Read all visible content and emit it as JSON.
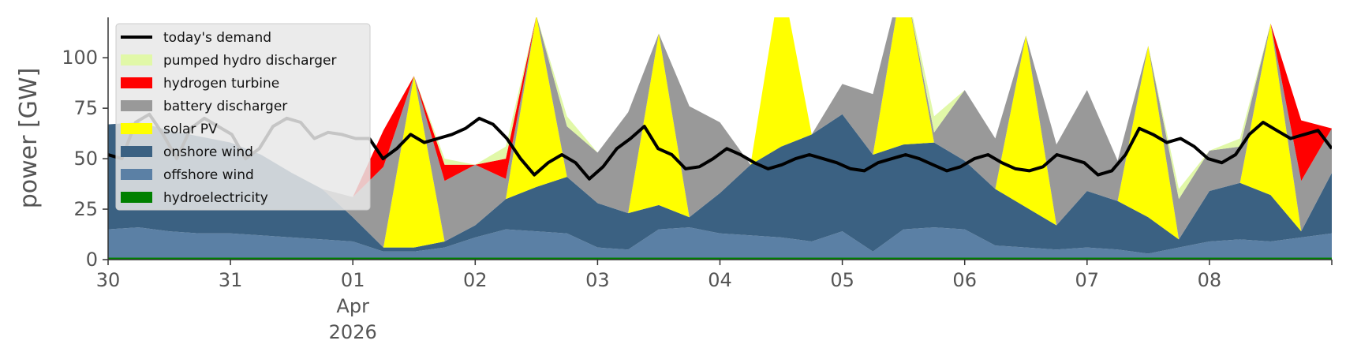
{
  "chart_data": {
    "type": "area",
    "title": "",
    "ylabel": "power [GW]",
    "xlabel": "",
    "xlim": [
      0,
      10
    ],
    "ylim": [
      0,
      120
    ],
    "grid": false,
    "legend_position": "top-left",
    "x_ticks": [
      {
        "x": 0,
        "label": "30"
      },
      {
        "x": 1,
        "label": "31"
      },
      {
        "x": 2,
        "label": "01",
        "sub": [
          "Apr",
          "2026"
        ]
      },
      {
        "x": 3,
        "label": "02"
      },
      {
        "x": 4,
        "label": "03"
      },
      {
        "x": 5,
        "label": "04"
      },
      {
        "x": 6,
        "label": "05"
      },
      {
        "x": 7,
        "label": "06"
      },
      {
        "x": 8,
        "label": "07"
      },
      {
        "x": 9,
        "label": "08"
      }
    ],
    "y_ticks": [
      0,
      25,
      50,
      75,
      100
    ],
    "x": [
      0,
      0.25,
      0.5,
      0.75,
      1,
      1.25,
      1.5,
      1.75,
      2,
      2.25,
      2.5,
      2.75,
      3,
      3.25,
      3.5,
      3.75,
      4,
      4.25,
      4.5,
      4.75,
      5,
      5.25,
      5.5,
      5.75,
      6,
      6.25,
      6.5,
      6.75,
      7,
      7.25,
      7.5,
      7.75,
      8,
      8.25,
      8.5,
      8.75,
      9,
      9.25,
      9.5,
      9.75,
      10
    ],
    "stack_series": [
      {
        "name": "hydroelectricity",
        "color": "#008000",
        "values": [
          1,
          1,
          1,
          1,
          1,
          1,
          1,
          1,
          1,
          1,
          1,
          1,
          1,
          1,
          1,
          1,
          1,
          1,
          1,
          1,
          1,
          1,
          1,
          1,
          1,
          1,
          1,
          1,
          1,
          1,
          1,
          1,
          1,
          1,
          1,
          1,
          1,
          1,
          1,
          1,
          1
        ]
      },
      {
        "name": "offshore wind",
        "color": "#5b80a5",
        "values": [
          14,
          15,
          13,
          12,
          12,
          11,
          10,
          9,
          8,
          3,
          3,
          5,
          10,
          14,
          13,
          12,
          5,
          4,
          14,
          15,
          12,
          11,
          10,
          8,
          13,
          3,
          14,
          15,
          14,
          6,
          5,
          4,
          5,
          4,
          2,
          5,
          8,
          9,
          8,
          10,
          12
        ]
      },
      {
        "name": "onshore wind",
        "color": "#3b6182",
        "values": [
          52,
          52,
          50,
          48,
          45,
          40,
          32,
          25,
          12,
          2,
          2,
          3,
          6,
          15,
          22,
          28,
          22,
          18,
          12,
          5,
          20,
          35,
          45,
          53,
          58,
          48,
          42,
          42,
          34,
          28,
          20,
          12,
          28,
          24,
          18,
          4,
          25,
          28,
          23,
          3,
          30
        ]
      },
      {
        "name": "solar PV",
        "color": "#ffff00",
        "values": [
          0,
          0,
          0,
          0,
          0,
          0,
          0,
          0,
          0,
          0,
          85,
          0,
          0,
          0,
          85,
          0,
          0,
          0,
          85,
          0,
          0,
          0,
          85,
          0,
          0,
          0,
          85,
          0,
          0,
          0,
          85,
          0,
          0,
          0,
          85,
          0,
          0,
          0,
          85,
          0,
          0
        ]
      },
      {
        "name": "battery discharger",
        "color": "#999999",
        "values": [
          0,
          0,
          0,
          0,
          0,
          0,
          0,
          0,
          10,
          40,
          0,
          30,
          30,
          10,
          0,
          25,
          25,
          50,
          0,
          55,
          35,
          0,
          0,
          0,
          15,
          30,
          0,
          5,
          35,
          25,
          0,
          40,
          50,
          20,
          0,
          20,
          20,
          18,
          0,
          25,
          22
        ]
      },
      {
        "name": "hydrogen turbine",
        "color": "#ff0000",
        "values": [
          0,
          0,
          0,
          0,
          0,
          0,
          0,
          0,
          0,
          18,
          0,
          8,
          0,
          10,
          0,
          0,
          0,
          0,
          0,
          0,
          0,
          0,
          0,
          0,
          0,
          0,
          0,
          0,
          0,
          0,
          0,
          0,
          0,
          0,
          0,
          0,
          0,
          0,
          0,
          30,
          0
        ]
      },
      {
        "name": "pumped hydro discharger",
        "color": "#e1f8a8",
        "values": [
          0,
          0,
          0,
          0,
          0,
          0,
          0,
          0,
          0,
          0,
          0,
          3,
          0,
          6,
          0,
          5,
          0,
          0,
          0,
          0,
          0,
          0,
          0,
          0,
          0,
          0,
          0,
          8,
          0,
          0,
          0,
          0,
          0,
          0,
          0,
          5,
          0,
          4,
          0,
          0,
          0
        ]
      }
    ],
    "demand": {
      "name": "today's demand",
      "color": "#000000",
      "values": [
        52,
        50,
        68,
        72,
        62,
        50,
        65,
        70,
        66,
        62,
        50,
        55,
        66,
        70,
        68,
        60,
        63,
        62,
        60,
        60,
        50,
        55,
        62,
        58,
        60,
        62,
        65,
        70,
        67,
        60,
        50,
        42,
        48,
        52,
        48,
        40,
        46,
        55,
        60,
        66,
        55,
        52,
        45,
        46,
        50,
        55,
        52,
        48,
        45,
        47,
        50,
        52,
        50,
        48,
        45,
        44,
        48,
        50,
        52,
        50,
        47,
        44,
        46,
        50,
        52,
        48,
        45,
        44,
        46,
        52,
        50,
        48,
        42,
        44,
        52,
        65,
        62,
        58,
        60,
        56,
        50,
        48,
        52,
        62,
        68,
        64,
        60,
        62,
        64,
        55
      ]
    },
    "demand_x_start": 0,
    "demand_x_end": 10,
    "legend": [
      {
        "label": "today's demand",
        "color": "#000000",
        "kind": "line"
      },
      {
        "label": "pumped hydro discharger",
        "color": "#e1f8a8",
        "kind": "patch"
      },
      {
        "label": "hydrogen turbine",
        "color": "#ff0000",
        "kind": "patch"
      },
      {
        "label": "battery discharger",
        "color": "#999999",
        "kind": "patch"
      },
      {
        "label": "solar PV",
        "color": "#ffff00",
        "kind": "patch"
      },
      {
        "label": "onshore wind",
        "color": "#3b6182",
        "kind": "patch"
      },
      {
        "label": "offshore wind",
        "color": "#5b80a5",
        "kind": "patch"
      },
      {
        "label": "hydroelectricity",
        "color": "#008000",
        "kind": "patch"
      }
    ]
  }
}
